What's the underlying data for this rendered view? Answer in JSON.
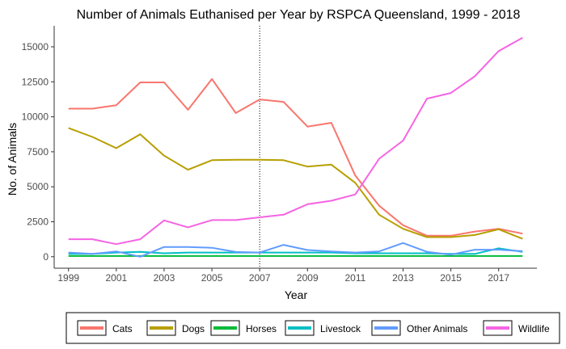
{
  "chart_data": {
    "type": "line",
    "title": "Number of Animals Euthanised per Year by RSPCA Queensland, 1999 - 2018",
    "xlabel": "Year",
    "ylabel": "No. of Animals",
    "xlim": [
      1998.4,
      2018.6
    ],
    "ylim": [
      -820,
      16500
    ],
    "x": [
      1999,
      2000,
      2001,
      2002,
      2003,
      2004,
      2005,
      2006,
      2007,
      2008,
      2009,
      2010,
      2011,
      2012,
      2013,
      2014,
      2015,
      2016,
      2017,
      2018
    ],
    "x_ticks": [
      "1999",
      "2001",
      "2003",
      "2005",
      "2007",
      "2009",
      "2011",
      "2013",
      "2015",
      "2017"
    ],
    "y_ticks": [
      "0",
      "2500",
      "5000",
      "7500",
      "10000",
      "12500",
      "15000"
    ],
    "reference_line": {
      "x": 2007,
      "style": "dotted"
    },
    "grid": false,
    "legend_position": "bottom",
    "series": [
      {
        "name": "Cats",
        "color": "#F8766D",
        "values": [
          10580,
          10580,
          10830,
          12460,
          12460,
          10500,
          12700,
          10270,
          11240,
          11070,
          9300,
          9570,
          5800,
          3650,
          2250,
          1500,
          1500,
          1800,
          2000,
          1650
        ]
      },
      {
        "name": "Dogs",
        "color": "#B79F00",
        "values": [
          9200,
          8560,
          7760,
          8750,
          7220,
          6220,
          6900,
          6930,
          6930,
          6900,
          6440,
          6580,
          5280,
          3000,
          2000,
          1400,
          1400,
          1550,
          1960,
          1280
        ]
      },
      {
        "name": "Horses",
        "color": "#00BA38",
        "values": [
          50,
          50,
          50,
          50,
          50,
          50,
          50,
          50,
          50,
          50,
          50,
          50,
          50,
          50,
          50,
          50,
          50,
          50,
          50,
          50
        ]
      },
      {
        "name": "Livestock",
        "color": "#00BFC4",
        "values": [
          200,
          200,
          300,
          350,
          250,
          300,
          300,
          300,
          300,
          300,
          300,
          300,
          250,
          250,
          250,
          250,
          200,
          200,
          600,
          350
        ]
      },
      {
        "name": "Other Animals",
        "color": "#619CFF",
        "values": [
          300,
          200,
          380,
          0,
          700,
          700,
          640,
          340,
          300,
          850,
          480,
          380,
          300,
          380,
          980,
          350,
          150,
          500,
          500,
          400
        ]
      },
      {
        "name": "Wildlife",
        "color": "#F564E3",
        "values": [
          1250,
          1250,
          900,
          1250,
          2600,
          2100,
          2620,
          2620,
          2820,
          3000,
          3750,
          4000,
          4450,
          7000,
          8300,
          11300,
          11700,
          12900,
          14700,
          15650
        ]
      }
    ]
  }
}
